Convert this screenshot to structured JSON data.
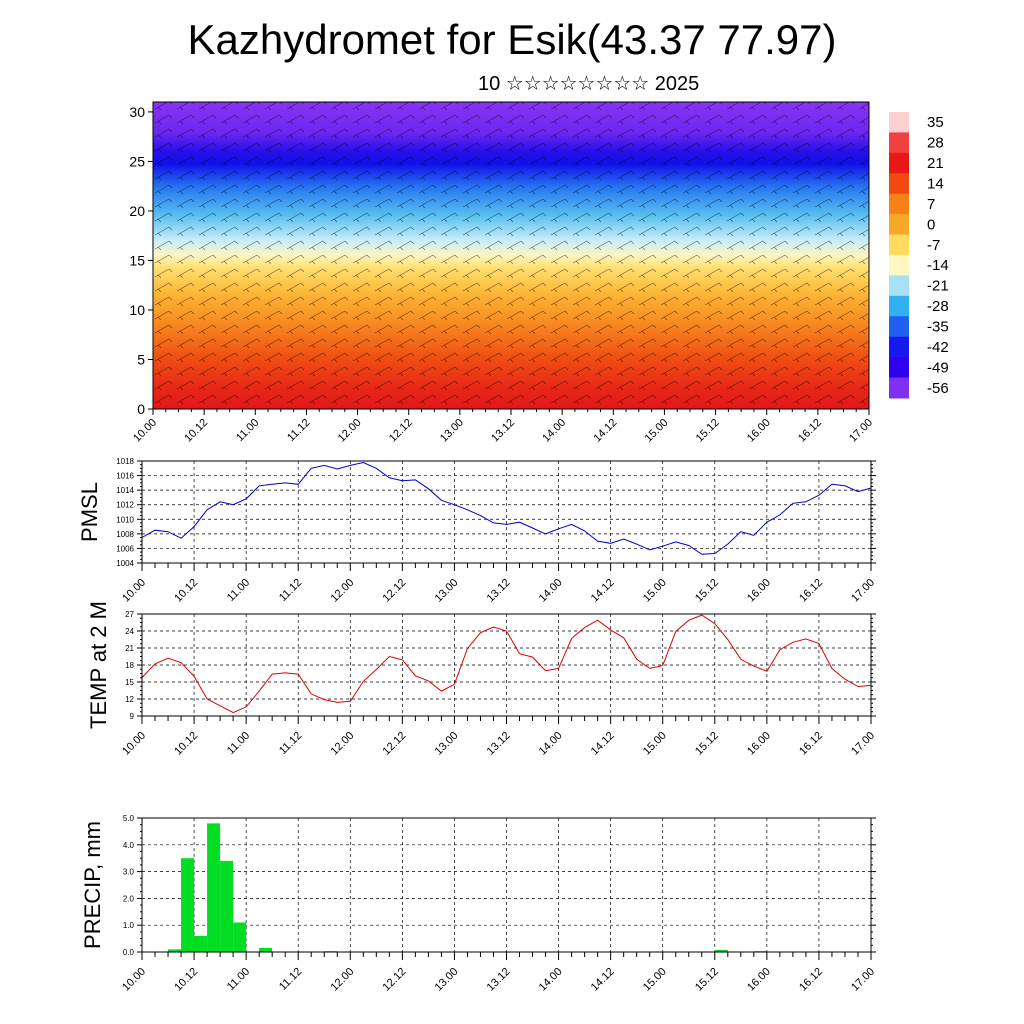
{
  "header": {
    "title": "Kazhydromet for Esik(43.37 77.97)",
    "subtitle": "10 ☆☆☆☆☆☆☆☆ 2025"
  },
  "colors": {
    "pmsl_line": "#0000cc",
    "temp_line": "#dd0000",
    "precip_bar": "#00dd22",
    "grid": "#000000"
  },
  "time_ticks": [
    "10.00",
    "10.12",
    "11.00",
    "11.12",
    "12.00",
    "12.12",
    "13.00",
    "13.12",
    "14.00",
    "14.12",
    "15.00",
    "15.12",
    "16.00",
    "16.12",
    "17.00"
  ],
  "chart_data": [
    {
      "type": "heatmap",
      "title": "Kazhydromet for Esik(43.37 77.97)",
      "subtitle": "10 ☆☆☆☆☆☆☆☆ 2025",
      "ylim": [
        0,
        31
      ],
      "y_ticks": [
        0,
        5,
        10,
        15,
        20,
        25,
        30
      ],
      "colorbar_labels": [
        "35",
        "28",
        "21",
        "14",
        "7",
        "0",
        "-7",
        "-14",
        "-21",
        "-28",
        "-35",
        "-42",
        "-49",
        "-56"
      ],
      "colorbar_colors": [
        "#ffd0d0",
        "#f04040",
        "#e81818",
        "#f04a10",
        "#f88018",
        "#f8a828",
        "#ffdc60",
        "#fff8c0",
        "#a8e0f8",
        "#30b0f0",
        "#2060f0",
        "#1818f0",
        "#3000f0",
        "#8030f0"
      ],
      "note_overlay": "wind barbs"
    },
    {
      "type": "line",
      "ylabel": "PMSL",
      "ylim": [
        1004,
        1018
      ],
      "y_ticks": [
        1004,
        1006,
        1008,
        1010,
        1012,
        1014,
        1016,
        1018
      ],
      "x_start": 0,
      "x_step": 3,
      "values": [
        1007.5,
        1008.5,
        1008.3,
        1007.4,
        1009.0,
        1011.3,
        1012.4,
        1012.0,
        1012.8,
        1014.6,
        1014.8,
        1015.0,
        1014.8,
        1017.0,
        1017.4,
        1016.9,
        1017.4,
        1017.8,
        1017.0,
        1015.7,
        1015.3,
        1015.4,
        1014.2,
        1012.6,
        1012.0,
        1011.3,
        1010.5,
        1009.5,
        1009.3,
        1009.6,
        1008.8,
        1008.0,
        1008.7,
        1009.3,
        1008.4,
        1007.0,
        1006.7,
        1007.3,
        1006.6,
        1005.8,
        1006.3,
        1006.9,
        1006.4,
        1005.2,
        1005.3,
        1006.6,
        1008.3,
        1007.8,
        1009.6,
        1010.6,
        1012.2,
        1012.4,
        1013.3,
        1014.8,
        1014.6,
        1013.8,
        1014.3
      ]
    },
    {
      "type": "line",
      "ylabel": "TEMP at 2 M",
      "ylim": [
        9,
        27
      ],
      "y_ticks": [
        9,
        12,
        15,
        18,
        21,
        24,
        27
      ],
      "x_start": 0,
      "x_step": 3,
      "values": [
        15.8,
        18.2,
        19.2,
        18.4,
        16.0,
        12.0,
        10.8,
        9.6,
        10.6,
        13.4,
        16.4,
        16.6,
        16.4,
        12.9,
        11.9,
        11.4,
        11.6,
        15.1,
        17.2,
        19.5,
        18.9,
        16.1,
        15.2,
        13.4,
        14.6,
        20.9,
        23.7,
        24.7,
        24.0,
        20.0,
        19.4,
        17.0,
        17.4,
        22.7,
        24.6,
        25.9,
        24.2,
        22.8,
        19.0,
        17.4,
        17.9,
        23.9,
        25.9,
        26.8,
        25.3,
        22.5,
        19.0,
        17.8,
        16.9,
        20.7,
        22.0,
        22.6,
        21.8,
        17.4,
        15.5,
        14.2,
        14.4
      ]
    },
    {
      "type": "bar",
      "ylabel": "PRECIP, mm",
      "ylim": [
        0,
        5
      ],
      "y_ticks": [
        "0.0",
        "1.0",
        "2.0",
        "3.0",
        "4.0",
        "5.0"
      ],
      "x_start": 1.5,
      "x_step": 3,
      "values": [
        0,
        0,
        0.1,
        3.5,
        0.6,
        4.8,
        3.4,
        1.1,
        0,
        0.15,
        0,
        0,
        0,
        0,
        0.03,
        0,
        0,
        0,
        0,
        0,
        0,
        0,
        0,
        0,
        0,
        0,
        0,
        0,
        0,
        0,
        0,
        0,
        0,
        0,
        0,
        0,
        0,
        0,
        0,
        0,
        0,
        0,
        0,
        0,
        0.08,
        0,
        0,
        0.03,
        0,
        0,
        0,
        0,
        0,
        0,
        0,
        0
      ]
    }
  ]
}
